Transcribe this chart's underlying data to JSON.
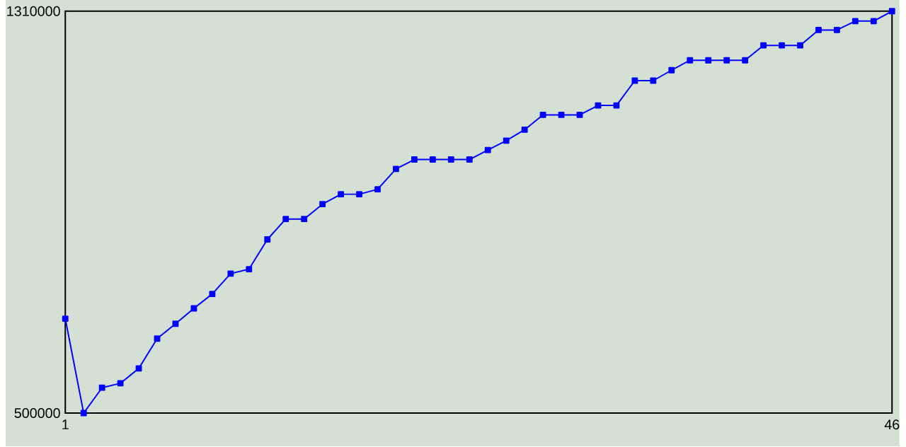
{
  "chart_data": {
    "type": "line",
    "x": [
      1,
      2,
      3,
      4,
      5,
      6,
      7,
      8,
      9,
      10,
      11,
      12,
      13,
      14,
      15,
      16,
      17,
      18,
      19,
      20,
      21,
      22,
      23,
      24,
      25,
      26,
      27,
      28,
      29,
      30,
      31,
      32,
      33,
      34,
      35,
      36,
      37,
      38,
      39,
      40,
      41,
      42,
      43,
      44,
      45,
      46
    ],
    "series": [
      {
        "color": "#0000ff",
        "values": [
          690000,
          500000,
          551000,
          560000,
          590000,
          650000,
          680000,
          711000,
          740000,
          781000,
          790000,
          850000,
          891000,
          891000,
          921000,
          941000,
          941000,
          951000,
          992000,
          1011000,
          1011000,
          1011000,
          1011000,
          1030000,
          1049000,
          1071000,
          1101000,
          1101000,
          1101000,
          1120000,
          1120000,
          1170000,
          1170000,
          1191000,
          1211000,
          1211000,
          1211000,
          1211000,
          1241000,
          1241000,
          1241000,
          1272000,
          1272000,
          1290000,
          1290000,
          1310000
        ]
      }
    ],
    "xlim": [
      1,
      46
    ],
    "ylim": [
      500000,
      1310000
    ],
    "xticks": [
      1,
      46
    ],
    "yticks": [
      500000,
      1310000
    ],
    "marker": "square",
    "line_style": "solid"
  }
}
